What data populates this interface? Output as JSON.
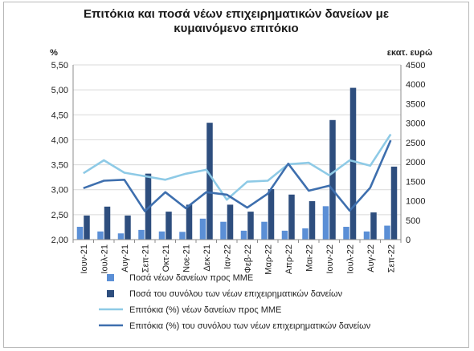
{
  "chart_data": {
    "type": "bar+line",
    "title_line1": "Επιτόκια και ποσά νέων επιχειρηματικών δανείων με",
    "title_line2": "κυμαινόμενο επιτόκιο",
    "left_unit": "%",
    "right_unit": "εκατ. ευρώ",
    "left_axis": {
      "min": 2.0,
      "max": 5.5,
      "step": 0.5,
      "ticks": [
        "2,00",
        "2,50",
        "3,00",
        "3,50",
        "4,00",
        "4,50",
        "5,00",
        "5,50"
      ]
    },
    "right_axis": {
      "min": 0,
      "max": 4500,
      "step": 500,
      "ticks": [
        "0",
        "500",
        "1000",
        "1500",
        "2000",
        "2500",
        "3000",
        "3500",
        "4000",
        "4500"
      ]
    },
    "categories": [
      "Ιουν-21",
      "Ιουλ-21",
      "Αυγ-21",
      "Σεπ-21",
      "Οκτ-21",
      "Νοε-21",
      "Δεκ-21",
      "Ιαν-22",
      "Φεβ-22",
      "Μαρ-22",
      "Απρ-22",
      "Μαι-22",
      "Ιουν-22",
      "Ιουλ-22",
      "Αυγ-22",
      "Σεπ-22"
    ],
    "series": [
      {
        "name": "Ποσά νέων δανείων προς ΜΜΕ",
        "kind": "bar",
        "axis": "right",
        "color": "#5b8fd6",
        "values": [
          330,
          210,
          160,
          250,
          210,
          200,
          540,
          460,
          230,
          460,
          230,
          290,
          860,
          330,
          210,
          360
        ]
      },
      {
        "name": "Ποσά του συνόλου των νέων επιχειρηματικών δανείων",
        "kind": "bar",
        "axis": "right",
        "color": "#2e4e7e",
        "values": [
          620,
          850,
          620,
          1700,
          720,
          900,
          3010,
          900,
          720,
          1300,
          1160,
          990,
          3080,
          3910,
          700,
          1880
        ]
      },
      {
        "name": "Επιτόκια (%) νέων δανείων προς ΜΜΕ",
        "kind": "line",
        "axis": "left",
        "color": "#8ecae6",
        "values": [
          3.33,
          3.59,
          3.34,
          3.27,
          3.2,
          3.32,
          3.4,
          2.8,
          3.16,
          3.18,
          3.51,
          3.54,
          3.29,
          3.59,
          3.48,
          4.11
        ]
      },
      {
        "name": "Επιτόκια (%) του συνόλου των νέων επιχειρηματικών δανείων",
        "kind": "line",
        "axis": "left",
        "color": "#3e6fae",
        "values": [
          3.03,
          3.18,
          3.2,
          2.57,
          2.95,
          2.63,
          2.95,
          2.9,
          2.64,
          2.92,
          3.52,
          2.98,
          3.08,
          2.58,
          3.04,
          3.99
        ]
      }
    ],
    "legend_position": "bottom",
    "grid": "horizontal"
  }
}
